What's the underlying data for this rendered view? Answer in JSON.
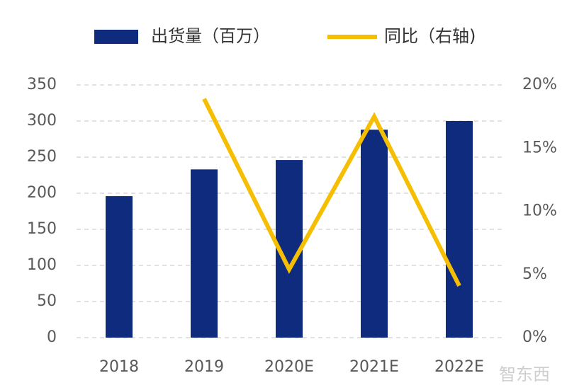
{
  "chart_data": {
    "type": "bar",
    "categories": [
      "2018",
      "2019",
      "2020E",
      "2021E",
      "2022E"
    ],
    "series": [
      {
        "name": "出货量（百万）",
        "type": "bar",
        "color": "#0f2b7d",
        "values": [
          196,
          233,
          246,
          288,
          300
        ]
      },
      {
        "name": "同比（右轴)",
        "type": "line",
        "axis": "y2",
        "color": "#f5be00",
        "values": [
          null,
          18.9,
          5.4,
          17.5,
          4.1
        ]
      }
    ],
    "ylim": [
      0,
      350
    ],
    "yticks": [
      0,
      50,
      100,
      150,
      200,
      250,
      300,
      350
    ],
    "y2lim": [
      0,
      20
    ],
    "y2ticks": [
      {
        "value": 0,
        "label": "0%"
      },
      {
        "value": 5,
        "label": "5%"
      },
      {
        "value": 10,
        "label": "10%"
      },
      {
        "value": 15,
        "label": "15%"
      },
      {
        "value": 20,
        "label": "20%"
      }
    ],
    "grid": true,
    "legend": "top",
    "watermark": "智东西"
  }
}
